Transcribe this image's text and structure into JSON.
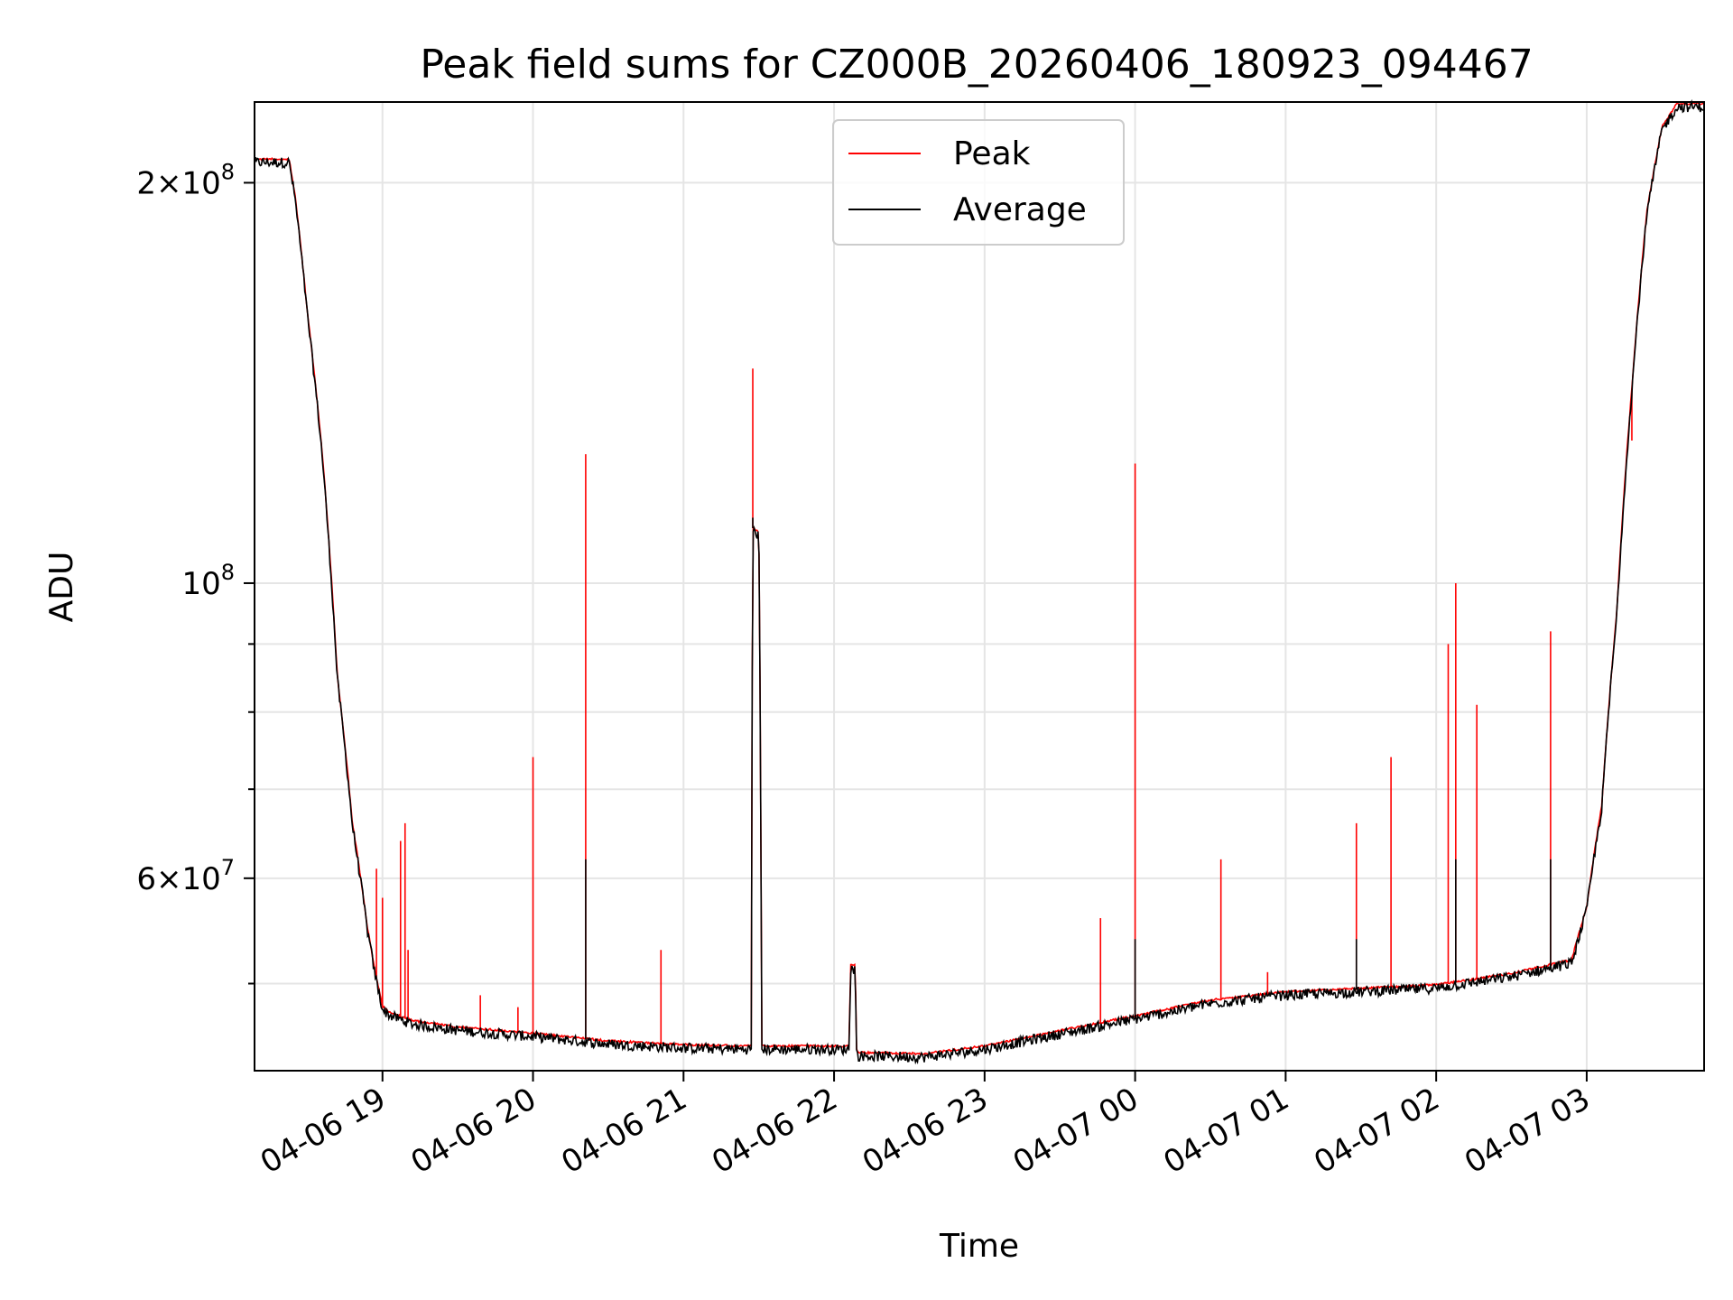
{
  "chart_data": {
    "type": "line",
    "title": "Peak field sums for CZ000B_20260406_180923_094467",
    "xlabel": "Time",
    "ylabel": "ADU",
    "yscale": "log",
    "ylim": [
      43000000,
      230000000
    ],
    "xlim_hours_from_2026_04_06_18_00": [
      0.15,
      9.78
    ],
    "grid": true,
    "legend": {
      "location": "top-center",
      "entries": [
        "Peak",
        "Average"
      ]
    },
    "colors": {
      "Peak": "#ff0000",
      "Average": "#000000",
      "grid": "#e5e5e5",
      "frame": "#000000"
    },
    "x_ticks": [
      {
        "label": "04-06 19",
        "hour": 1
      },
      {
        "label": "04-06 20",
        "hour": 2
      },
      {
        "label": "04-06 21",
        "hour": 3
      },
      {
        "label": "04-06 22",
        "hour": 4
      },
      {
        "label": "04-06 23",
        "hour": 5
      },
      {
        "label": "04-07 00",
        "hour": 6
      },
      {
        "label": "04-07 01",
        "hour": 7
      },
      {
        "label": "04-07 02",
        "hour": 8
      },
      {
        "label": "04-07 03",
        "hour": 9
      }
    ],
    "y_ticks": [
      {
        "base": "2",
        "exp": "8",
        "value": 200000000
      },
      {
        "base": "",
        "exp": "8",
        "value": 100000000
      },
      {
        "base": "6",
        "exp": "7",
        "value": 60000000
      }
    ],
    "y_minor_ticks": [
      50000000,
      70000000,
      80000000,
      90000000
    ],
    "baseline": [
      [
        0.15,
        208000000
      ],
      [
        0.38,
        208000000
      ],
      [
        0.42,
        195000000
      ],
      [
        0.5,
        160000000
      ],
      [
        0.6,
        125000000
      ],
      [
        0.7,
        85000000
      ],
      [
        0.8,
        66000000
      ],
      [
        0.9,
        55000000
      ],
      [
        0.95,
        51000000
      ],
      [
        1.0,
        48000000
      ],
      [
        1.05,
        47500000
      ],
      [
        1.2,
        46800000
      ],
      [
        1.5,
        46300000
      ],
      [
        2.0,
        45800000
      ],
      [
        2.5,
        45200000
      ],
      [
        3.0,
        44900000
      ],
      [
        3.45,
        44800000
      ],
      [
        3.46,
        110000000
      ],
      [
        3.5,
        109000000
      ],
      [
        3.52,
        44800000
      ],
      [
        4.0,
        44800000
      ],
      [
        4.1,
        44800000
      ],
      [
        4.11,
        51500000
      ],
      [
        4.14,
        51500000
      ],
      [
        4.15,
        44300000
      ],
      [
        4.6,
        44200000
      ],
      [
        5.0,
        44800000
      ],
      [
        5.5,
        46000000
      ],
      [
        6.0,
        47200000
      ],
      [
        6.5,
        48500000
      ],
      [
        7.0,
        49200000
      ],
      [
        7.5,
        49500000
      ],
      [
        8.0,
        49800000
      ],
      [
        8.5,
        50800000
      ],
      [
        8.9,
        52000000
      ],
      [
        9.0,
        57000000
      ],
      [
        9.1,
        68000000
      ],
      [
        9.2,
        95000000
      ],
      [
        9.3,
        140000000
      ],
      [
        9.4,
        190000000
      ],
      [
        9.5,
        220000000
      ],
      [
        9.6,
        229000000
      ],
      [
        9.78,
        229000000
      ]
    ],
    "peak_spikes": [
      [
        0.96,
        61000000
      ],
      [
        1.0,
        58000000
      ],
      [
        1.12,
        64000000
      ],
      [
        1.15,
        66000000
      ],
      [
        1.17,
        53000000
      ],
      [
        1.65,
        49000000
      ],
      [
        1.9,
        48000000
      ],
      [
        2.0,
        74000000
      ],
      [
        2.35,
        125000000
      ],
      [
        2.85,
        53000000
      ],
      [
        3.46,
        145000000
      ],
      [
        6.0,
        123000000
      ],
      [
        5.77,
        56000000
      ],
      [
        6.57,
        62000000
      ],
      [
        6.88,
        51000000
      ],
      [
        7.47,
        66000000
      ],
      [
        7.7,
        74000000
      ],
      [
        8.08,
        90000000
      ],
      [
        8.13,
        100000000
      ],
      [
        8.27,
        81000000
      ],
      [
        8.76,
        92000000
      ],
      [
        9.3,
        128000000
      ]
    ],
    "average_spikes": [
      [
        2.35,
        62000000
      ],
      [
        3.46,
        112000000
      ],
      [
        6.0,
        54000000
      ],
      [
        7.47,
        54000000
      ],
      [
        8.13,
        62000000
      ],
      [
        8.76,
        62000000
      ]
    ]
  }
}
